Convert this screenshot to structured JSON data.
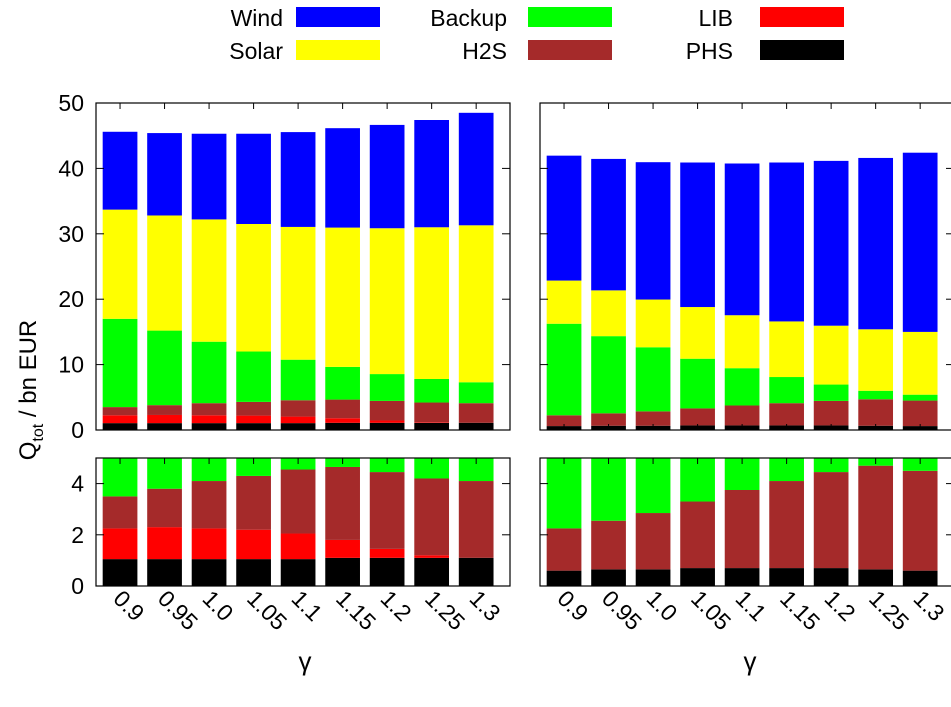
{
  "chart_data": {
    "type": "bar",
    "stacked": true,
    "legend": {
      "position": "top",
      "entries": [
        {
          "name": "Wind",
          "color": "#0000ff"
        },
        {
          "name": "Backup",
          "color": "#00ff00"
        },
        {
          "name": "LIB",
          "color": "#ff0000"
        },
        {
          "name": "Solar",
          "color": "#ffff00"
        },
        {
          "name": "H2S",
          "color": "#a52a2a"
        },
        {
          "name": "PHS",
          "color": "#000000"
        }
      ]
    },
    "ylabel": "Q",
    "ylabel_sub": "tot",
    "ylabel_rest": " / bn EUR",
    "xlabel": "γ",
    "categories": [
      "0.9",
      "0.95",
      "1.0",
      "1.05",
      "1.1",
      "1.15",
      "1.2",
      "1.25",
      "1.3"
    ],
    "panels": [
      {
        "id": "left",
        "series": [
          {
            "name": "PHS",
            "color": "#000000",
            "values": [
              1.05,
              1.05,
              1.05,
              1.05,
              1.05,
              1.1,
              1.1,
              1.1,
              1.1
            ]
          },
          {
            "name": "LIB",
            "color": "#ff0000",
            "values": [
              1.2,
              1.25,
              1.2,
              1.15,
              1.0,
              0.7,
              0.35,
              0.1,
              0.0
            ]
          },
          {
            "name": "H2S",
            "color": "#a52a2a",
            "values": [
              1.25,
              1.5,
              1.85,
              2.1,
              2.5,
              2.85,
              3.0,
              3.0,
              3.0
            ]
          },
          {
            "name": "Backup",
            "color": "#00ff00",
            "values": [
              13.5,
              11.4,
              9.4,
              7.7,
              6.2,
              5.0,
              4.1,
              3.6,
              3.2
            ]
          },
          {
            "name": "Solar",
            "color": "#ffff00",
            "values": [
              16.7,
              17.6,
              18.7,
              19.5,
              20.3,
              21.3,
              22.3,
              23.2,
              24.0
            ]
          },
          {
            "name": "Wind",
            "color": "#0000ff",
            "values": [
              11.9,
              12.6,
              13.1,
              13.8,
              14.5,
              15.2,
              15.8,
              16.4,
              17.2
            ]
          }
        ]
      },
      {
        "id": "right",
        "series": [
          {
            "name": "PHS",
            "color": "#000000",
            "values": [
              0.6,
              0.65,
              0.65,
              0.7,
              0.7,
              0.7,
              0.7,
              0.65,
              0.6
            ]
          },
          {
            "name": "LIB",
            "color": "#ff0000",
            "values": [
              0,
              0,
              0,
              0,
              0,
              0,
              0,
              0,
              0
            ]
          },
          {
            "name": "H2S",
            "color": "#a52a2a",
            "values": [
              1.65,
              1.9,
              2.2,
              2.6,
              3.05,
              3.4,
              3.75,
              4.05,
              3.9
            ]
          },
          {
            "name": "Backup",
            "color": "#00ff00",
            "values": [
              14.0,
              11.8,
              9.8,
              7.6,
              5.7,
              4.0,
              2.5,
              1.3,
              0.9
            ]
          },
          {
            "name": "Solar",
            "color": "#ffff00",
            "values": [
              6.6,
              7.0,
              7.3,
              7.9,
              8.1,
              8.5,
              9.0,
              9.4,
              9.6
            ]
          },
          {
            "name": "Wind",
            "color": "#0000ff",
            "values": [
              19.1,
              20.1,
              21.0,
              22.1,
              23.2,
              24.3,
              25.2,
              26.2,
              27.4
            ]
          }
        ]
      }
    ],
    "top_axis": {
      "ylim": [
        0,
        50
      ],
      "ticks": [
        "0",
        "10",
        "20",
        "30",
        "40",
        "50"
      ]
    },
    "bottom_axis": {
      "ylim": [
        0,
        5
      ],
      "ticks": [
        "0",
        "2",
        "4"
      ]
    }
  }
}
